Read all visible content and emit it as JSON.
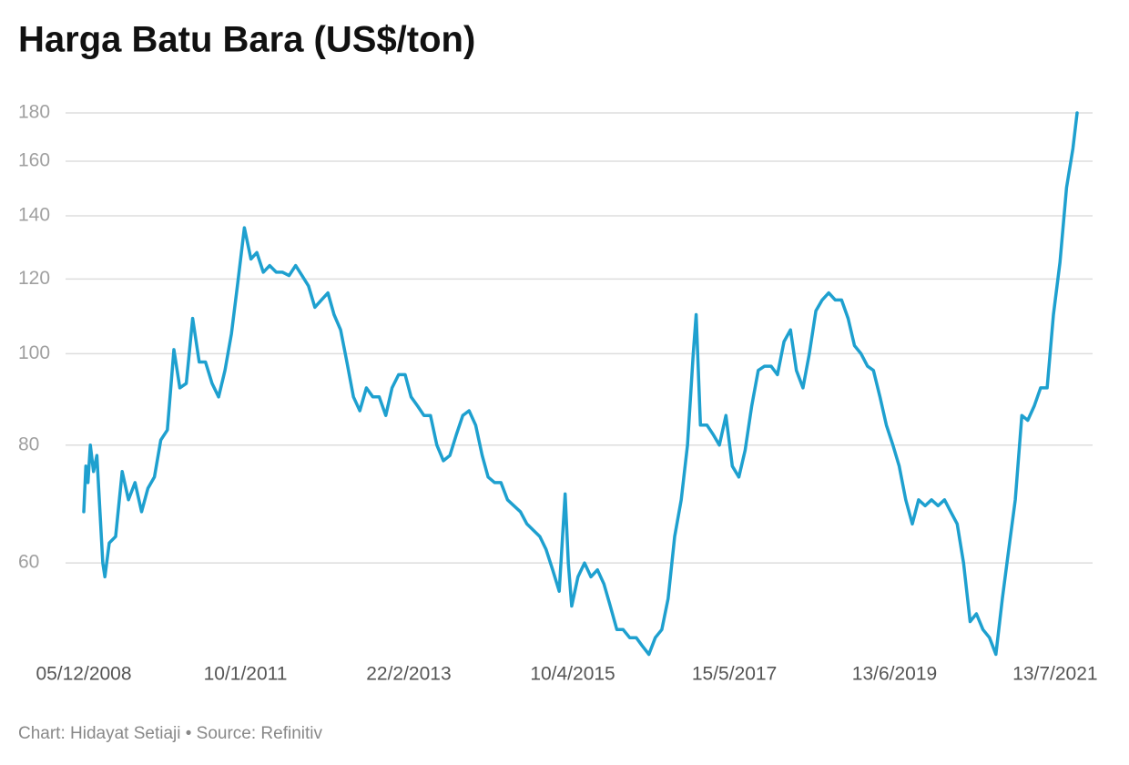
{
  "chart_data": {
    "type": "line",
    "title": "Harga Batu Bara (US$/ton)",
    "source": "Chart: Hidayat Setiaji • Source: Refinitiv",
    "color": "#1ea0cf",
    "yscale": "log",
    "grid": true,
    "ylim": [
      47,
      182
    ],
    "yticks": [
      60,
      80,
      100,
      120,
      140,
      160,
      180
    ],
    "xlim": [
      "2008-12-05",
      "2021-10-25"
    ],
    "xticks": [
      {
        "value": "2008-12-05",
        "label": "05/12/2008"
      },
      {
        "value": "2011-01-10",
        "label": "10/1/2011"
      },
      {
        "value": "2013-02-22",
        "label": "22/2/2013"
      },
      {
        "value": "2015-04-10",
        "label": "10/4/2015"
      },
      {
        "value": "2017-05-15",
        "label": "15/5/2017"
      },
      {
        "value": "2019-06-13",
        "label": "13/6/2019"
      },
      {
        "value": "2021-07-13",
        "label": "13/7/2021"
      }
    ],
    "x": [
      "2008-12-05",
      "2008-12-15",
      "2008-12-25",
      "2009-01-05",
      "2009-01-20",
      "2009-02-05",
      "2009-03-05",
      "2009-03-15",
      "2009-04-05",
      "2009-05-05",
      "2009-06-05",
      "2009-07-05",
      "2009-08-05",
      "2009-09-05",
      "2009-10-05",
      "2009-11-05",
      "2009-12-05",
      "2010-01-05",
      "2010-02-05",
      "2010-03-05",
      "2010-04-05",
      "2010-05-05",
      "2010-06-05",
      "2010-07-05",
      "2010-08-05",
      "2010-09-05",
      "2010-10-05",
      "2010-11-05",
      "2010-12-05",
      "2011-01-05",
      "2011-02-05",
      "2011-03-05",
      "2011-04-05",
      "2011-05-05",
      "2011-06-05",
      "2011-07-05",
      "2011-08-05",
      "2011-09-05",
      "2011-10-05",
      "2011-11-05",
      "2011-12-05",
      "2012-01-05",
      "2012-02-05",
      "2012-03-05",
      "2012-04-05",
      "2012-05-05",
      "2012-06-05",
      "2012-07-05",
      "2012-08-05",
      "2012-09-05",
      "2012-10-05",
      "2012-11-05",
      "2012-12-05",
      "2013-01-05",
      "2013-02-05",
      "2013-03-05",
      "2013-04-05",
      "2013-05-05",
      "2013-06-05",
      "2013-07-05",
      "2013-08-05",
      "2013-09-05",
      "2013-10-05",
      "2013-11-05",
      "2013-12-05",
      "2014-01-05",
      "2014-02-05",
      "2014-03-05",
      "2014-04-05",
      "2014-05-05",
      "2014-06-05",
      "2014-07-05",
      "2014-08-05",
      "2014-09-05",
      "2014-10-05",
      "2014-11-05",
      "2014-12-05",
      "2015-01-05",
      "2015-02-05",
      "2015-03-05",
      "2015-03-20",
      "2015-04-05",
      "2015-05-05",
      "2015-06-05",
      "2015-07-05",
      "2015-08-05",
      "2015-09-05",
      "2015-10-05",
      "2015-11-05",
      "2015-12-05",
      "2016-01-05",
      "2016-02-05",
      "2016-03-05",
      "2016-04-05",
      "2016-05-05",
      "2016-06-05",
      "2016-07-05",
      "2016-08-05",
      "2016-09-05",
      "2016-10-05",
      "2016-11-01",
      "2016-11-15",
      "2016-12-05",
      "2017-01-05",
      "2017-02-05",
      "2017-03-05",
      "2017-04-05",
      "2017-05-05",
      "2017-06-05",
      "2017-07-05",
      "2017-08-05",
      "2017-09-05",
      "2017-10-05",
      "2017-11-05",
      "2017-12-05",
      "2018-01-05",
      "2018-02-05",
      "2018-03-05",
      "2018-04-05",
      "2018-05-05",
      "2018-06-05",
      "2018-07-05",
      "2018-08-05",
      "2018-09-05",
      "2018-10-05",
      "2018-11-05",
      "2018-12-05",
      "2019-01-05",
      "2019-02-05",
      "2019-03-05",
      "2019-04-05",
      "2019-05-05",
      "2019-06-05",
      "2019-07-05",
      "2019-08-05",
      "2019-09-05",
      "2019-10-05",
      "2019-11-05",
      "2019-12-05",
      "2020-01-05",
      "2020-02-05",
      "2020-03-05",
      "2020-04-05",
      "2020-05-05",
      "2020-06-05",
      "2020-07-05",
      "2020-08-05",
      "2020-09-05",
      "2020-10-05",
      "2020-11-05",
      "2020-12-05",
      "2021-01-05",
      "2021-02-05",
      "2021-03-05",
      "2021-04-05",
      "2021-05-05",
      "2021-06-05",
      "2021-07-05",
      "2021-08-05",
      "2021-09-05",
      "2021-10-05",
      "2021-10-25"
    ],
    "values": [
      68,
      76,
      73,
      80,
      75,
      78,
      60,
      58,
      63,
      64,
      75,
      70,
      73,
      68,
      72,
      74,
      81,
      83,
      101,
      92,
      93,
      109,
      98,
      98,
      93,
      90,
      96,
      105,
      119,
      136,
      126,
      128,
      122,
      124,
      122,
      122,
      121,
      124,
      121,
      118,
      112,
      114,
      116,
      110,
      106,
      98,
      90,
      87,
      92,
      90,
      90,
      86,
      92,
      95,
      95,
      90,
      88,
      86,
      86,
      80,
      77,
      78,
      82,
      86,
      87,
      84,
      78,
      74,
      73,
      73,
      70,
      69,
      68,
      66,
      65,
      64,
      62,
      59,
      56,
      71,
      60,
      54,
      58,
      60,
      58,
      59,
      57,
      54,
      51,
      51,
      50,
      50,
      49,
      48,
      50,
      51,
      55,
      64,
      70,
      80,
      100,
      110,
      84,
      84,
      82,
      80,
      86,
      76,
      74,
      79,
      88,
      96,
      97,
      97,
      95,
      103,
      106,
      96,
      92,
      100,
      111,
      114,
      116,
      114,
      114,
      109,
      102,
      100,
      97,
      96,
      90,
      84,
      80,
      76,
      70,
      66,
      70,
      69,
      70,
      69,
      70,
      68,
      66,
      60,
      52,
      53,
      51,
      50,
      48,
      55,
      62,
      70,
      86,
      85,
      88,
      92,
      92,
      110,
      125,
      150,
      165,
      180
    ]
  }
}
